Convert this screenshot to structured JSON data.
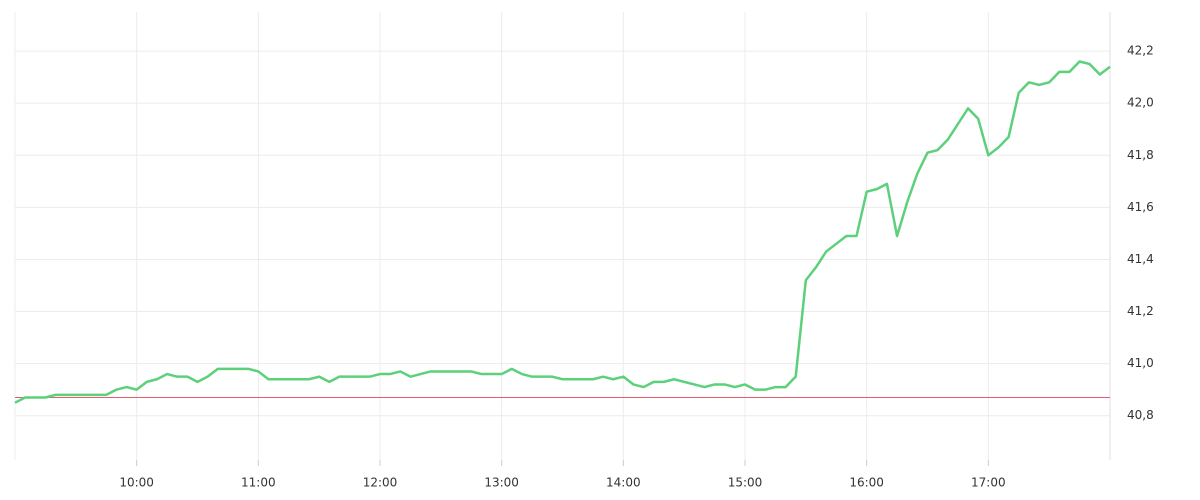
{
  "chart_data": {
    "type": "line",
    "x": [
      "09:00",
      "09:05",
      "09:10",
      "09:15",
      "09:20",
      "09:25",
      "09:30",
      "09:35",
      "09:40",
      "09:45",
      "09:50",
      "09:55",
      "10:00",
      "10:05",
      "10:10",
      "10:15",
      "10:20",
      "10:25",
      "10:30",
      "10:35",
      "10:40",
      "10:45",
      "10:50",
      "10:55",
      "11:00",
      "11:05",
      "11:10",
      "11:15",
      "11:20",
      "11:25",
      "11:30",
      "11:35",
      "11:40",
      "11:45",
      "11:50",
      "11:55",
      "12:00",
      "12:05",
      "12:10",
      "12:15",
      "12:20",
      "12:25",
      "12:30",
      "12:35",
      "12:40",
      "12:45",
      "12:50",
      "12:55",
      "13:00",
      "13:05",
      "13:10",
      "13:15",
      "13:20",
      "13:25",
      "13:30",
      "13:35",
      "13:40",
      "13:45",
      "13:50",
      "13:55",
      "14:00",
      "14:05",
      "14:10",
      "14:15",
      "14:20",
      "14:25",
      "14:30",
      "14:35",
      "14:40",
      "14:45",
      "14:50",
      "14:55",
      "15:00",
      "15:05",
      "15:10",
      "15:15",
      "15:20",
      "15:25",
      "15:30",
      "15:35",
      "15:40",
      "15:45",
      "15:50",
      "15:55",
      "16:00",
      "16:05",
      "16:10",
      "16:15",
      "16:20",
      "16:25",
      "16:30",
      "16:35",
      "16:40",
      "16:45",
      "16:50",
      "16:55",
      "17:00",
      "17:05",
      "17:10",
      "17:15",
      "17:20",
      "17:25",
      "17:30",
      "17:35",
      "17:40",
      "17:45",
      "17:50",
      "17:55",
      "18:00"
    ],
    "series": [
      {
        "color": "#5cd07a",
        "values": [
          40.85,
          40.87,
          40.87,
          40.87,
          40.88,
          40.88,
          40.88,
          40.88,
          40.88,
          40.88,
          40.9,
          40.91,
          40.9,
          40.93,
          40.94,
          40.96,
          40.95,
          40.95,
          40.93,
          40.95,
          40.98,
          40.98,
          40.98,
          40.98,
          40.97,
          40.94,
          40.94,
          40.94,
          40.94,
          40.94,
          40.95,
          40.93,
          40.95,
          40.95,
          40.95,
          40.95,
          40.96,
          40.96,
          40.97,
          40.95,
          40.96,
          40.97,
          40.97,
          40.97,
          40.97,
          40.97,
          40.96,
          40.96,
          40.96,
          40.98,
          40.96,
          40.95,
          40.95,
          40.95,
          40.94,
          40.94,
          40.94,
          40.94,
          40.95,
          40.94,
          40.95,
          40.92,
          40.91,
          40.93,
          40.93,
          40.94,
          40.93,
          40.92,
          40.91,
          40.92,
          40.92,
          40.91,
          40.92,
          40.9,
          40.9,
          40.91,
          40.91,
          40.95,
          41.32,
          41.37,
          41.43,
          41.46,
          41.49,
          41.49,
          41.66,
          41.67,
          41.69,
          41.49,
          41.62,
          41.73,
          41.81,
          41.82,
          41.86,
          41.92,
          41.98,
          41.94,
          41.8,
          41.83,
          41.87,
          42.04,
          42.08,
          42.07,
          42.08,
          42.12,
          42.12,
          42.16,
          42.15,
          42.11,
          42.14
        ]
      }
    ],
    "xlim": [
      "09:00",
      "18:00"
    ],
    "xticks": [
      "10:00",
      "11:00",
      "12:00",
      "13:00",
      "14:00",
      "15:00",
      "16:00",
      "17:00"
    ],
    "ylim": [
      40.63,
      42.35
    ],
    "yticks": [
      {
        "value": 40.8,
        "label": "40,8"
      },
      {
        "value": 41.0,
        "label": "41,0"
      },
      {
        "value": 41.2,
        "label": "41,2"
      },
      {
        "value": 41.4,
        "label": "41,4"
      },
      {
        "value": 41.6,
        "label": "41,6"
      },
      {
        "value": 41.8,
        "label": "41,8"
      },
      {
        "value": 42.0,
        "label": "42,0"
      },
      {
        "value": 42.2,
        "label": "42,2"
      }
    ],
    "reference_line": {
      "value": 40.87,
      "color": "#e06070"
    },
    "grid": true
  }
}
